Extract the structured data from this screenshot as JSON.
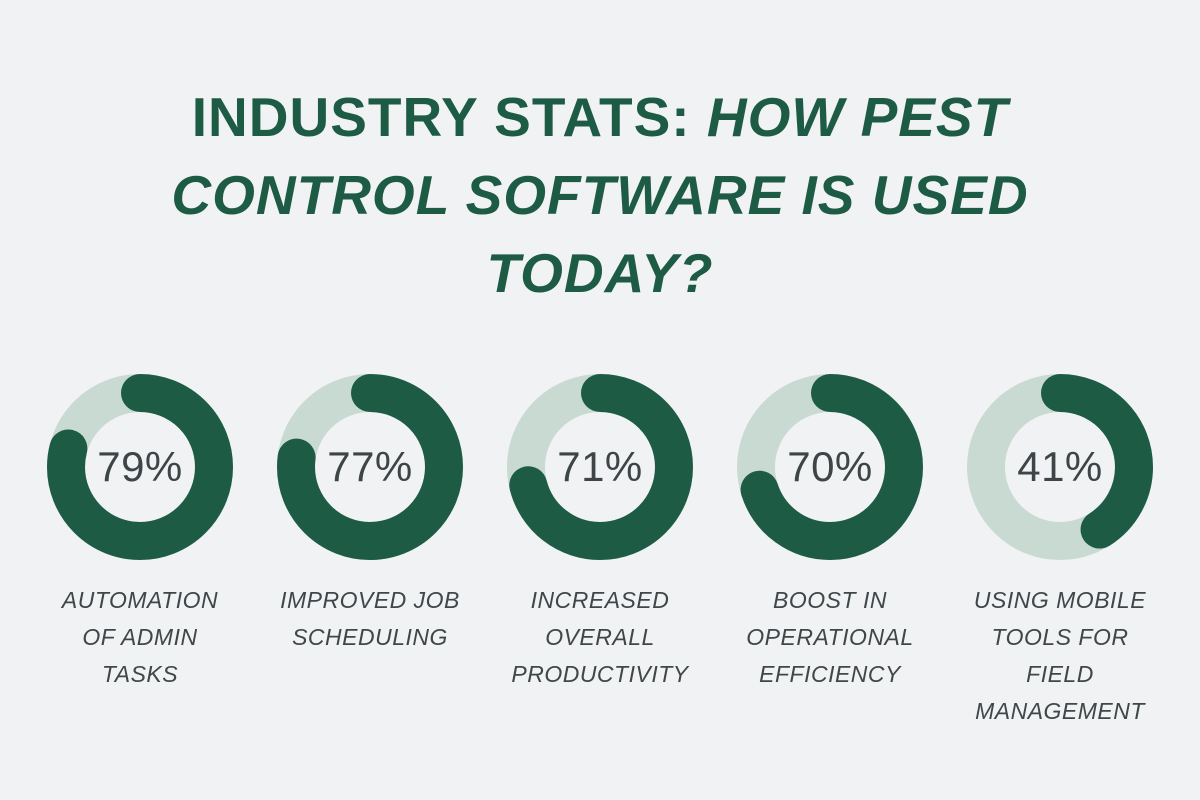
{
  "title": {
    "prefix": "INDUSTRY STATS: ",
    "emphasis": "HOW PEST CONTROL SOFTWARE IS USED TODAY?"
  },
  "colors": {
    "background": "#f1f2f4",
    "title_green": "#1d5b45",
    "ring_track": "#c8dad1",
    "ring_fill": "#1d5b45",
    "value_text": "#3e4546",
    "label_text": "#3f4748"
  },
  "chart_data": {
    "type": "pie",
    "subtype": "donut-progress-multiples",
    "title": "INDUSTRY STATS: HOW PEST CONTROL SOFTWARE IS USED TODAY?",
    "unit": "%",
    "values": [
      79,
      77,
      71,
      70,
      41
    ],
    "value_labels": [
      "79%",
      "77%",
      "71%",
      "70%",
      "41%"
    ],
    "categories": [
      "AUTOMATION OF ADMIN TASKS",
      "IMPROVED JOB SCHEDULING",
      "INCREASED OVERALL PRODUCTIVITY",
      "BOOST IN OPERATIONAL EFFICIENCY",
      "USING MOBILE TOOLS FOR FIELD MANAGEMENT"
    ],
    "arc_start": "top",
    "arc_direction": "clockwise",
    "legend_position": "none",
    "grid": false
  }
}
